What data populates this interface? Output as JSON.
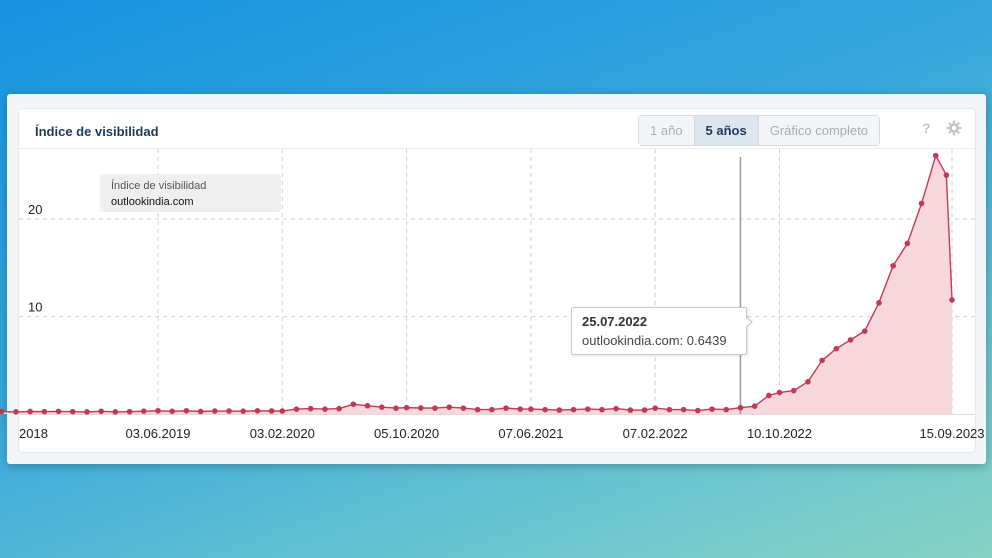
{
  "card": {
    "title": "Índice de visibilidad"
  },
  "range_buttons": [
    {
      "label": "1 año",
      "active": false
    },
    {
      "label": "5 años",
      "active": true
    },
    {
      "label": "Gráfico completo",
      "active": false
    }
  ],
  "icons": {
    "help": "?",
    "settings": "gear-icon"
  },
  "series_label": {
    "line1": "Índice de visibilidad",
    "line2": "outlookindia.com"
  },
  "tooltip": {
    "date": "25.07.2022",
    "text": "outlookindia.com: 0.6439"
  },
  "colors": {
    "line": "#c03a55",
    "fill": "#f6d7dc",
    "grid": "#d0d0d0",
    "hover_line": "#999999"
  },
  "chart_data": {
    "type": "area",
    "title": "Índice de visibilidad",
    "series": [
      {
        "name": "outlookindia.com",
        "points": [
          [
            "2018-07-30",
            0.25
          ],
          [
            "2018-08-27",
            0.22
          ],
          [
            "2018-09-24",
            0.26
          ],
          [
            "2018-10-22",
            0.24
          ],
          [
            "2018-11-19",
            0.27
          ],
          [
            "2018-12-17",
            0.24
          ],
          [
            "2019-01-14",
            0.22
          ],
          [
            "2019-02-11",
            0.28
          ],
          [
            "2019-03-11",
            0.22
          ],
          [
            "2019-04-08",
            0.24
          ],
          [
            "2019-05-06",
            0.29
          ],
          [
            "2019-06-03",
            0.33
          ],
          [
            "2019-07-01",
            0.28
          ],
          [
            "2019-07-29",
            0.33
          ],
          [
            "2019-08-26",
            0.26
          ],
          [
            "2019-09-23",
            0.3
          ],
          [
            "2019-10-21",
            0.3
          ],
          [
            "2019-11-18",
            0.29
          ],
          [
            "2019-12-16",
            0.33
          ],
          [
            "2020-01-13",
            0.31
          ],
          [
            "2020-02-03",
            0.3
          ],
          [
            "2020-03-02",
            0.5
          ],
          [
            "2020-03-30",
            0.55
          ],
          [
            "2020-04-27",
            0.5
          ],
          [
            "2020-05-25",
            0.55
          ],
          [
            "2020-06-22",
            1.0
          ],
          [
            "2020-07-20",
            0.85
          ],
          [
            "2020-08-17",
            0.7
          ],
          [
            "2020-09-14",
            0.6
          ],
          [
            "2020-10-05",
            0.65
          ],
          [
            "2020-11-02",
            0.62
          ],
          [
            "2020-11-30",
            0.6
          ],
          [
            "2020-12-28",
            0.7
          ],
          [
            "2021-01-25",
            0.6
          ],
          [
            "2021-02-22",
            0.45
          ],
          [
            "2021-03-22",
            0.45
          ],
          [
            "2021-04-19",
            0.6
          ],
          [
            "2021-05-17",
            0.5
          ],
          [
            "2021-06-07",
            0.5
          ],
          [
            "2021-07-05",
            0.45
          ],
          [
            "2021-08-02",
            0.4
          ],
          [
            "2021-08-30",
            0.45
          ],
          [
            "2021-09-27",
            0.5
          ],
          [
            "2021-10-25",
            0.45
          ],
          [
            "2021-11-22",
            0.55
          ],
          [
            "2021-12-20",
            0.4
          ],
          [
            "2022-01-17",
            0.4
          ],
          [
            "2022-02-07",
            0.6
          ],
          [
            "2022-03-07",
            0.45
          ],
          [
            "2022-04-04",
            0.45
          ],
          [
            "2022-05-02",
            0.35
          ],
          [
            "2022-05-30",
            0.5
          ],
          [
            "2022-06-27",
            0.45
          ],
          [
            "2022-07-25",
            0.6439
          ],
          [
            "2022-08-22",
            0.8
          ],
          [
            "2022-09-19",
            1.9
          ],
          [
            "2022-10-10",
            2.2
          ],
          [
            "2022-11-07",
            2.4
          ],
          [
            "2022-12-05",
            3.3
          ],
          [
            "2023-01-02",
            5.5
          ],
          [
            "2023-01-30",
            6.7
          ],
          [
            "2023-02-27",
            7.6
          ],
          [
            "2023-03-27",
            8.5
          ],
          [
            "2023-04-24",
            11.4
          ],
          [
            "2023-05-22",
            15.2
          ],
          [
            "2023-06-19",
            17.5
          ],
          [
            "2023-07-17",
            21.6
          ],
          [
            "2023-08-14",
            26.5
          ],
          [
            "2023-09-04",
            24.5
          ],
          [
            "2023-09-15",
            11.7
          ]
        ]
      }
    ],
    "x_ticks": [
      "2018",
      "03.06.2019",
      "03.02.2020",
      "05.10.2020",
      "07.06.2021",
      "07.02.2022",
      "10.10.2022",
      "15.09.2023"
    ],
    "y_ticks": [
      10,
      20
    ],
    "ylim": [
      0,
      27.5
    ],
    "hover_date": "2022-07-25",
    "grid": true
  }
}
